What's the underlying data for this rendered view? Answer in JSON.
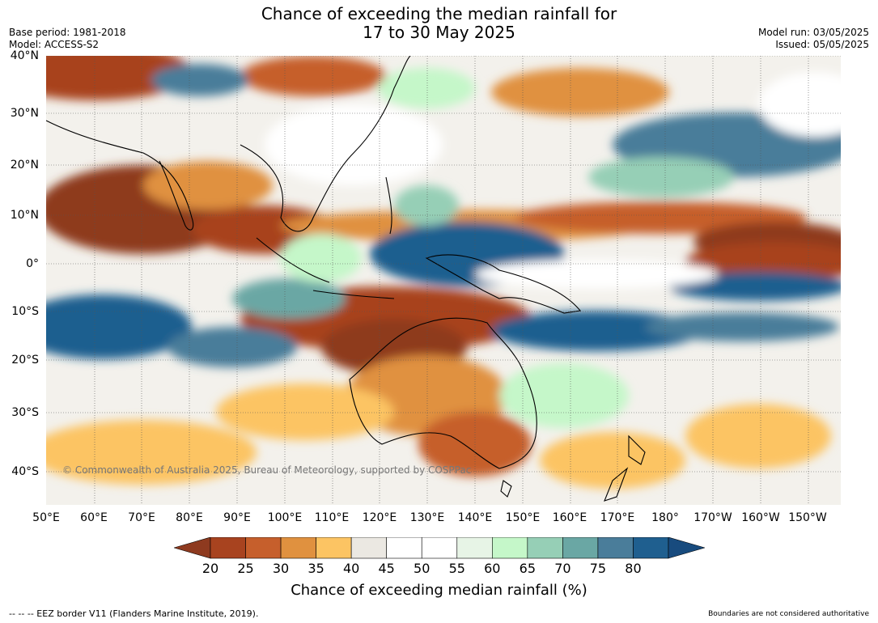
{
  "title": {
    "line1": "Chance of exceeding the median rainfall for",
    "line2": "17 to 30 May 2025"
  },
  "meta": {
    "base_period": "Base period: 1981-2018",
    "model": "Model: ACCESS-S2",
    "model_run": "Model run: 03/05/2025",
    "issued": "Issued: 05/05/2025"
  },
  "map": {
    "lat_ticks": [
      "40°N",
      "30°N",
      "20°N",
      "10°N",
      "0°",
      "10°S",
      "20°S",
      "30°S",
      "40°S"
    ],
    "lon_ticks": [
      "50°E",
      "60°E",
      "70°E",
      "80°E",
      "90°E",
      "100°E",
      "110°E",
      "120°E",
      "130°E",
      "140°E",
      "150°E",
      "160°E",
      "170°E",
      "180°",
      "170°W",
      "160°W",
      "150°W"
    ],
    "watermark": "© Commonwealth of Australia 2025, Bureau of Meteorology, supported by COSPPac"
  },
  "legend": {
    "ticks": [
      "20",
      "25",
      "30",
      "35",
      "40",
      "45",
      "50",
      "55",
      "60",
      "65",
      "70",
      "75",
      "80"
    ],
    "colors": [
      "#8e3a1f",
      "#a8431f",
      "#c65f2c",
      "#e0913f",
      "#fcc463",
      "#ebe8e2",
      "#ffffff",
      "#ffffff",
      "#e7f4e6",
      "#c5f7c9",
      "#96cfb6",
      "#6aa7a4",
      "#4a7d9a",
      "#1f5f8f",
      "#184b7e"
    ],
    "title": "Chance of exceeding median rainfall (%)"
  },
  "footer": {
    "eez": "--  --  -- EEZ border V11 (Flanders Marine Institute, 2019).",
    "disclaimer": "Boundaries are not considered authoritative"
  }
}
